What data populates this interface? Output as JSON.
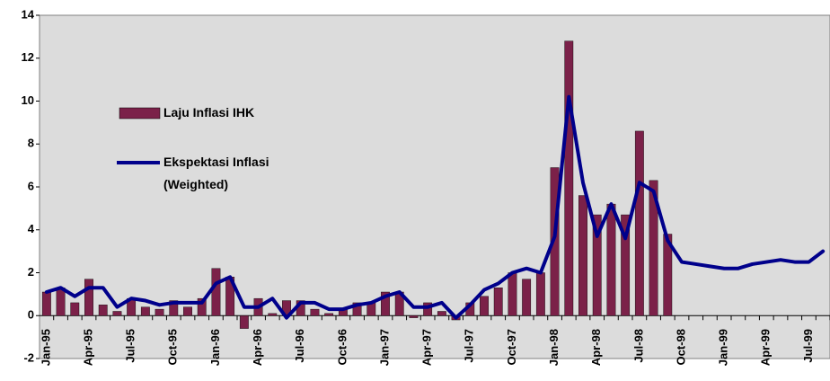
{
  "chart_data": {
    "type": "bar+line",
    "categories": [
      "Jan-95",
      null,
      null,
      "Apr-95",
      null,
      null,
      "Jul-95",
      null,
      null,
      "Oct-95",
      null,
      null,
      "Jan-96",
      null,
      null,
      "Apr-96",
      null,
      null,
      "Jul-96",
      null,
      null,
      "Oct-96",
      null,
      null,
      "Jan-97",
      null,
      null,
      "Apr-97",
      null,
      null,
      "Jul-97",
      null,
      null,
      "Oct-97",
      null,
      null,
      "Jan-98",
      null,
      null,
      "Apr-98",
      null,
      null,
      "Jul-98",
      null,
      null,
      "Oct-98",
      null,
      null,
      "Jan-99",
      null,
      null,
      "Apr-99",
      null,
      null,
      "Jul-99",
      null
    ],
    "series": [
      {
        "name": "Laju Inflasi IHK",
        "type": "bar",
        "color": "#7b2149",
        "values": [
          1.1,
          1.3,
          0.6,
          1.7,
          0.5,
          0.2,
          0.8,
          0.4,
          0.3,
          0.7,
          0.4,
          0.8,
          2.2,
          1.8,
          -0.6,
          0.8,
          0.1,
          0.7,
          0.7,
          0.3,
          0.1,
          0.3,
          0.6,
          0.6,
          1.1,
          1.1,
          -0.1,
          0.6,
          0.2,
          -0.2,
          0.6,
          0.9,
          1.3,
          2.0,
          1.7,
          2.0,
          6.9,
          12.8,
          5.6,
          4.7,
          5.2,
          4.7,
          8.6,
          6.3,
          3.8,
          null,
          null,
          null,
          null,
          null,
          null,
          null,
          null,
          null,
          null,
          null
        ]
      },
      {
        "name": "Ekspektasi Inflasi (Weighted)",
        "type": "line",
        "color": "#00008b",
        "values": [
          1.1,
          1.3,
          0.9,
          1.3,
          1.3,
          0.4,
          0.8,
          0.7,
          0.5,
          0.6,
          0.6,
          0.6,
          1.5,
          1.8,
          0.4,
          0.4,
          0.8,
          -0.1,
          0.6,
          0.6,
          0.3,
          0.3,
          0.5,
          0.6,
          0.9,
          1.1,
          0.4,
          0.4,
          0.6,
          -0.1,
          0.5,
          1.2,
          1.5,
          2.0,
          2.2,
          2.0,
          3.7,
          10.2,
          6.2,
          3.7,
          5.2,
          3.6,
          6.2,
          5.8,
          3.5,
          2.5,
          2.4,
          2.3,
          2.2,
          2.2,
          2.4,
          2.5,
          2.6,
          2.5,
          2.5,
          3.0
        ]
      }
    ],
    "ylim": [
      -2,
      14
    ],
    "yticks": [
      -2,
      0,
      2,
      4,
      6,
      8,
      10,
      12,
      14
    ],
    "grid": false
  }
}
